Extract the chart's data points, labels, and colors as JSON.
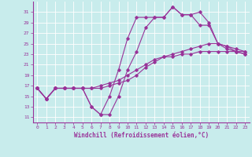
{
  "xlabel": "Windchill (Refroidissement éolien,°C)",
  "bg_color": "#c8ecec",
  "line_color": "#993399",
  "grid_color": "#ffffff",
  "xlim": [
    -0.5,
    23.5
  ],
  "ylim": [
    10.0,
    33.0
  ],
  "yticks": [
    11,
    13,
    15,
    17,
    19,
    21,
    23,
    25,
    27,
    29,
    31
  ],
  "xticks": [
    0,
    1,
    2,
    3,
    4,
    5,
    6,
    7,
    8,
    9,
    10,
    11,
    12,
    13,
    14,
    15,
    16,
    17,
    18,
    19,
    20,
    21,
    22,
    23
  ],
  "line1_x": [
    0,
    1,
    2,
    3,
    4,
    5,
    6,
    7,
    8,
    9,
    10,
    11,
    12,
    13,
    14,
    15,
    16,
    17,
    18,
    19,
    20,
    21,
    22,
    23
  ],
  "line1_y": [
    16.5,
    14.5,
    16.5,
    16.5,
    16.5,
    16.5,
    13.0,
    11.5,
    11.5,
    15.0,
    20.0,
    23.5,
    28.0,
    30.0,
    30.0,
    32.0,
    30.5,
    30.5,
    31.0,
    29.0,
    25.0,
    24.0,
    23.5,
    23.0
  ],
  "line2_x": [
    0,
    1,
    2,
    3,
    4,
    5,
    6,
    7,
    8,
    9,
    10,
    11,
    12,
    13,
    14,
    15,
    16,
    17,
    18,
    19,
    20,
    21,
    22,
    23
  ],
  "line2_y": [
    16.5,
    14.5,
    16.5,
    16.5,
    16.5,
    16.5,
    13.0,
    11.5,
    15.0,
    20.0,
    26.0,
    30.0,
    30.0,
    30.0,
    30.0,
    32.0,
    30.5,
    30.5,
    28.5,
    28.5,
    25.0,
    24.5,
    23.5,
    23.0
  ],
  "line3_x": [
    0,
    1,
    2,
    3,
    4,
    5,
    6,
    7,
    8,
    9,
    10,
    11,
    12,
    13,
    14,
    15,
    16,
    17,
    18,
    19,
    20,
    21,
    22,
    23
  ],
  "line3_y": [
    16.5,
    14.5,
    16.5,
    16.5,
    16.5,
    16.5,
    16.5,
    16.5,
    17.0,
    17.5,
    18.0,
    19.0,
    20.5,
    21.5,
    22.5,
    23.0,
    23.5,
    24.0,
    24.5,
    25.0,
    25.0,
    24.5,
    24.0,
    23.5
  ],
  "line4_x": [
    0,
    1,
    2,
    3,
    4,
    5,
    6,
    7,
    8,
    9,
    10,
    11,
    12,
    13,
    14,
    15,
    16,
    17,
    18,
    19,
    20,
    21,
    22,
    23
  ],
  "line4_y": [
    16.5,
    14.5,
    16.5,
    16.5,
    16.5,
    16.5,
    16.5,
    17.0,
    17.5,
    18.0,
    19.0,
    20.0,
    21.0,
    22.0,
    22.5,
    22.5,
    23.0,
    23.0,
    23.5,
    23.5,
    23.5,
    23.5,
    23.5,
    23.5
  ]
}
